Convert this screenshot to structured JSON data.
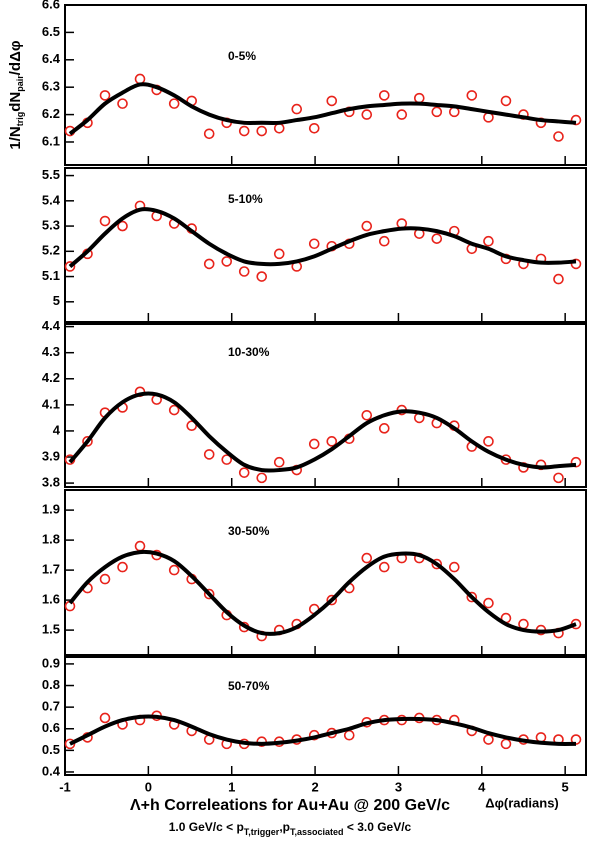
{
  "figure": {
    "title": "Λ+h Correleations for Au+Au @ 200 GeV/c",
    "subtitle": [
      "1.0 GeV/c < p",
      "T,trigger",
      ",p",
      "T,associated",
      " < 3.0 GeV/c"
    ],
    "xlabel": "Δφ(radians)",
    "ylabel": [
      "1/N",
      "trig",
      "dN",
      "pair",
      "/dΔφ"
    ]
  },
  "chart_data": [
    {
      "type": "scatter",
      "label": "0-5%",
      "x": [
        -0.94,
        -0.73,
        -0.52,
        -0.31,
        -0.1,
        0.1,
        0.31,
        0.52,
        0.73,
        0.94,
        1.15,
        1.36,
        1.57,
        1.78,
        1.99,
        2.2,
        2.41,
        2.62,
        2.83,
        3.04,
        3.25,
        3.46,
        3.67,
        3.88,
        4.08,
        4.29,
        4.5,
        4.71,
        4.92,
        5.13
      ],
      "xlim": [
        -1,
        5.25
      ],
      "xticks": [
        -1,
        0,
        1,
        2,
        3,
        4,
        5
      ],
      "ylim": [
        6.016,
        6.6
      ],
      "yticks": [
        6.1,
        6.2,
        6.3,
        6.4,
        6.5,
        6.6
      ],
      "series": [
        {
          "color": "#e8231b",
          "marker": "open-circle",
          "values": [
            6.14,
            6.17,
            6.27,
            6.24,
            6.33,
            6.29,
            6.24,
            6.25,
            6.13,
            6.17,
            6.14,
            6.14,
            6.15,
            6.22,
            6.15,
            6.25,
            6.21,
            6.2,
            6.27,
            6.2,
            6.26,
            6.21,
            6.21,
            6.27,
            6.19,
            6.25,
            6.2,
            6.17,
            6.12,
            6.18
          ]
        },
        {
          "color": "#000000",
          "line": "smooth",
          "values": [
            6.13,
            6.18,
            6.24,
            6.28,
            6.31,
            6.3,
            6.27,
            6.23,
            6.2,
            6.18,
            6.17,
            6.17,
            6.17,
            6.18,
            6.19,
            6.205,
            6.22,
            6.23,
            6.235,
            6.24,
            6.24,
            6.235,
            6.23,
            6.22,
            6.21,
            6.2,
            6.19,
            6.18,
            6.175,
            6.17
          ]
        }
      ]
    },
    {
      "type": "scatter",
      "label": "5-10%",
      "x": [
        -0.94,
        -0.73,
        -0.52,
        -0.31,
        -0.1,
        0.1,
        0.31,
        0.52,
        0.73,
        0.94,
        1.15,
        1.36,
        1.57,
        1.78,
        1.99,
        2.2,
        2.41,
        2.62,
        2.83,
        3.04,
        3.25,
        3.46,
        3.67,
        3.88,
        4.08,
        4.29,
        4.5,
        4.71,
        4.92,
        5.13
      ],
      "xlim": [
        -1,
        5.25
      ],
      "xticks": [
        -1,
        0,
        1,
        2,
        3,
        4,
        5
      ],
      "ylim": [
        4.92,
        5.53
      ],
      "yticks": [
        5,
        5.1,
        5.2,
        5.3,
        5.4,
        5.5
      ],
      "series": [
        {
          "color": "#e8231b",
          "marker": "open-circle",
          "values": [
            5.14,
            5.19,
            5.32,
            5.3,
            5.38,
            5.34,
            5.31,
            5.29,
            5.15,
            5.16,
            5.12,
            5.1,
            5.19,
            5.14,
            5.23,
            5.22,
            5.23,
            5.3,
            5.24,
            5.31,
            5.27,
            5.25,
            5.28,
            5.21,
            5.24,
            5.17,
            5.15,
            5.17,
            5.09,
            5.15
          ]
        },
        {
          "color": "#000000",
          "line": "smooth",
          "values": [
            5.14,
            5.2,
            5.27,
            5.33,
            5.365,
            5.36,
            5.33,
            5.28,
            5.23,
            5.19,
            5.16,
            5.15,
            5.15,
            5.16,
            5.18,
            5.21,
            5.24,
            5.265,
            5.28,
            5.29,
            5.29,
            5.28,
            5.26,
            5.23,
            5.21,
            5.18,
            5.165,
            5.155,
            5.155,
            5.16
          ]
        }
      ]
    },
    {
      "type": "scatter",
      "label": "10-30%",
      "x": [
        -0.94,
        -0.73,
        -0.52,
        -0.31,
        -0.1,
        0.1,
        0.31,
        0.52,
        0.73,
        0.94,
        1.15,
        1.36,
        1.57,
        1.78,
        1.99,
        2.2,
        2.41,
        2.62,
        2.83,
        3.04,
        3.25,
        3.46,
        3.67,
        3.88,
        4.08,
        4.29,
        4.5,
        4.71,
        4.92,
        5.13
      ],
      "xlim": [
        -1,
        5.25
      ],
      "xticks": [
        -1,
        0,
        1,
        2,
        3,
        4,
        5
      ],
      "ylim": [
        3.785,
        4.41
      ],
      "yticks": [
        3.8,
        3.9,
        4,
        4.1,
        4.2,
        4.3,
        4.4
      ],
      "series": [
        {
          "color": "#e8231b",
          "marker": "open-circle",
          "values": [
            3.89,
            3.96,
            4.07,
            4.09,
            4.15,
            4.12,
            4.08,
            4.02,
            3.91,
            3.89,
            3.84,
            3.82,
            3.88,
            3.85,
            3.95,
            3.96,
            3.97,
            4.06,
            4.01,
            4.08,
            4.05,
            4.03,
            4.02,
            3.94,
            3.96,
            3.89,
            3.86,
            3.87,
            3.82,
            3.88
          ]
        },
        {
          "color": "#000000",
          "line": "smooth",
          "values": [
            3.88,
            3.96,
            4.05,
            4.11,
            4.14,
            4.14,
            4.11,
            4.05,
            3.98,
            3.92,
            3.87,
            3.85,
            3.85,
            3.86,
            3.89,
            3.93,
            3.98,
            4.03,
            4.06,
            4.075,
            4.07,
            4.05,
            4.01,
            3.96,
            3.92,
            3.89,
            3.87,
            3.86,
            3.865,
            3.87
          ]
        }
      ]
    },
    {
      "type": "scatter",
      "label": "30-50%",
      "x": [
        -0.94,
        -0.73,
        -0.52,
        -0.31,
        -0.1,
        0.1,
        0.31,
        0.52,
        0.73,
        0.94,
        1.15,
        1.36,
        1.57,
        1.78,
        1.99,
        2.2,
        2.41,
        2.62,
        2.83,
        3.04,
        3.25,
        3.46,
        3.67,
        3.88,
        4.08,
        4.29,
        4.5,
        4.71,
        4.92,
        5.13
      ],
      "xlim": [
        -1,
        5.25
      ],
      "xticks": [
        -1,
        0,
        1,
        2,
        3,
        4,
        5
      ],
      "ylim": [
        1.417,
        1.967
      ],
      "yticks": [
        1.5,
        1.6,
        1.7,
        1.8,
        1.9
      ],
      "series": [
        {
          "color": "#e8231b",
          "marker": "open-circle",
          "values": [
            1.58,
            1.64,
            1.67,
            1.71,
            1.78,
            1.75,
            1.7,
            1.67,
            1.62,
            1.55,
            1.51,
            1.48,
            1.5,
            1.52,
            1.57,
            1.6,
            1.64,
            1.74,
            1.71,
            1.74,
            1.74,
            1.72,
            1.71,
            1.61,
            1.59,
            1.54,
            1.52,
            1.5,
            1.49,
            1.52
          ]
        },
        {
          "color": "#000000",
          "line": "smooth",
          "values": [
            1.59,
            1.66,
            1.71,
            1.745,
            1.76,
            1.755,
            1.73,
            1.68,
            1.62,
            1.56,
            1.515,
            1.49,
            1.49,
            1.51,
            1.55,
            1.6,
            1.66,
            1.71,
            1.745,
            1.755,
            1.75,
            1.72,
            1.67,
            1.61,
            1.56,
            1.52,
            1.5,
            1.495,
            1.5,
            1.52
          ]
        }
      ]
    },
    {
      "type": "scatter",
      "label": "50-70%",
      "x": [
        -0.94,
        -0.73,
        -0.52,
        -0.31,
        -0.1,
        0.1,
        0.31,
        0.52,
        0.73,
        0.94,
        1.15,
        1.36,
        1.57,
        1.78,
        1.99,
        2.2,
        2.41,
        2.62,
        2.83,
        3.04,
        3.25,
        3.46,
        3.67,
        3.88,
        4.08,
        4.29,
        4.5,
        4.71,
        4.92,
        5.13
      ],
      "xlim": [
        -1,
        5.25
      ],
      "xticks": [
        -1,
        0,
        1,
        2,
        3,
        4,
        5
      ],
      "ylim": [
        0.386,
        0.932
      ],
      "yticks": [
        0.4,
        0.5,
        0.6,
        0.7,
        0.8,
        0.9
      ],
      "series": [
        {
          "color": "#e8231b",
          "marker": "open-circle",
          "values": [
            0.53,
            0.56,
            0.65,
            0.62,
            0.64,
            0.66,
            0.62,
            0.59,
            0.55,
            0.53,
            0.53,
            0.54,
            0.54,
            0.55,
            0.57,
            0.58,
            0.57,
            0.63,
            0.64,
            0.64,
            0.65,
            0.64,
            0.64,
            0.59,
            0.55,
            0.53,
            0.55,
            0.56,
            0.55,
            0.55
          ]
        },
        {
          "color": "#000000",
          "line": "smooth",
          "values": [
            0.53,
            0.57,
            0.61,
            0.64,
            0.655,
            0.655,
            0.64,
            0.61,
            0.575,
            0.55,
            0.535,
            0.53,
            0.535,
            0.545,
            0.56,
            0.58,
            0.6,
            0.625,
            0.64,
            0.645,
            0.645,
            0.64,
            0.625,
            0.605,
            0.58,
            0.56,
            0.545,
            0.535,
            0.53,
            0.53
          ]
        }
      ]
    }
  ]
}
